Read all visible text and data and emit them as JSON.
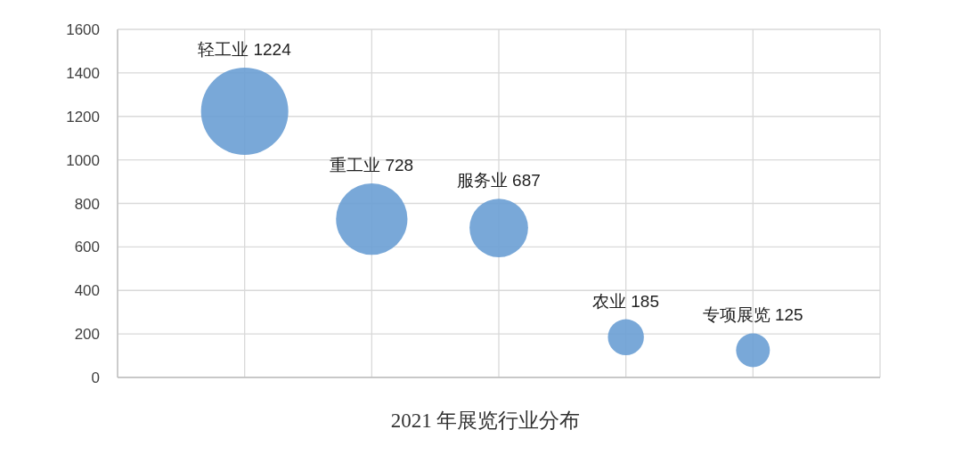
{
  "chart_data": {
    "type": "bubble",
    "xlabel": "2021 年展览行业分布",
    "categories": [
      "轻工业",
      "重工业",
      "服务业",
      "农业",
      "专项展览"
    ],
    "values": [
      1224,
      728,
      687,
      185,
      125
    ],
    "sizes": [
      1,
      0.67,
      0.45,
      0.17,
      0.15
    ],
    "color": "#6a9fd4",
    "ylim": [
      0,
      1600
    ],
    "yticks": [
      0,
      200,
      400,
      600,
      800,
      1000,
      1200,
      1400,
      1600
    ],
    "grid": true,
    "data_labels": true,
    "tick_labels": "y"
  }
}
